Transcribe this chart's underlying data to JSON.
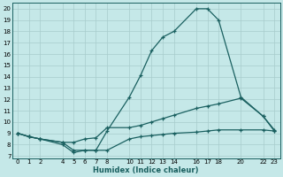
{
  "xlabel": "Humidex (Indice chaleur)",
  "bg_color": "#c5e8e8",
  "grid_color": "#a8cccc",
  "line_color": "#1a6060",
  "xlim": [
    -0.5,
    23.5
  ],
  "ylim": [
    6.8,
    20.5
  ],
  "xticks": [
    0,
    1,
    2,
    4,
    5,
    6,
    7,
    8,
    10,
    11,
    12,
    13,
    14,
    16,
    17,
    18,
    20,
    22,
    23
  ],
  "yticks": [
    7,
    8,
    9,
    10,
    11,
    12,
    13,
    14,
    15,
    16,
    17,
    18,
    19,
    20
  ],
  "line1_x": [
    0,
    1,
    2,
    4,
    5,
    6,
    7,
    8,
    10,
    11,
    12,
    13,
    14,
    16,
    17,
    18,
    20,
    22,
    23
  ],
  "line1_y": [
    9,
    8.7,
    8.5,
    8.2,
    7.5,
    7.5,
    7.5,
    9.2,
    12.2,
    14.1,
    16.3,
    17.5,
    18.0,
    20.0,
    20.0,
    19.0,
    12.2,
    10.5,
    9.2
  ],
  "line2_x": [
    0,
    1,
    2,
    4,
    5,
    6,
    7,
    8,
    10,
    11,
    12,
    13,
    14,
    16,
    17,
    18,
    20,
    22,
    23
  ],
  "line2_y": [
    9,
    8.7,
    8.5,
    8.2,
    8.2,
    8.5,
    8.6,
    9.5,
    9.5,
    9.7,
    10.0,
    10.3,
    10.6,
    11.2,
    11.4,
    11.6,
    12.1,
    10.5,
    9.3
  ],
  "line3_x": [
    0,
    1,
    2,
    4,
    5,
    6,
    7,
    8,
    10,
    11,
    12,
    13,
    14,
    16,
    17,
    18,
    20,
    22,
    23
  ],
  "line3_y": [
    9,
    8.7,
    8.5,
    8.0,
    7.3,
    7.5,
    7.5,
    7.5,
    8.5,
    8.7,
    8.8,
    8.9,
    9.0,
    9.1,
    9.2,
    9.3,
    9.3,
    9.3,
    9.2
  ]
}
